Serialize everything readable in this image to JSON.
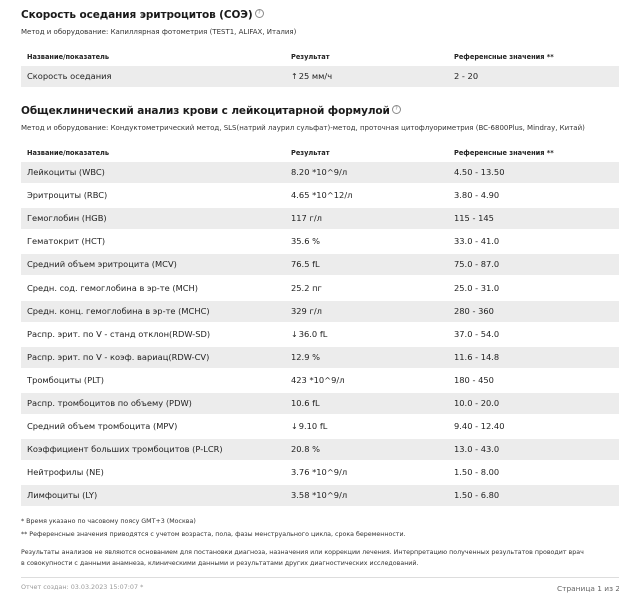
{
  "esr_section": {
    "title": "Скорость оседания эритроцитов (СОЭ)",
    "method": "Метод и оборудование: Капиллярная фотометрия (TEST1, ALIFAX, Италия)",
    "headers": [
      "Название/показатель",
      "Результат",
      "Референсные значения **"
    ],
    "rows": [
      {
        "name": "Скорость оседания",
        "arrow": "↑",
        "result": "25 мм/ч",
        "ref": "2 - 20"
      }
    ]
  },
  "cbc_section": {
    "title": "Общеклинический анализ крови с лейкоцитарной формулой",
    "method": "Метод и оборудование: Кондуктометрический метод, SLS(натрий лаурил сульфат)-метод, проточная цитофлуориметрия (BC-6800Plus, Mindray, Китай)",
    "headers": [
      "Название/показатель",
      "Результат",
      "Референсные значения **"
    ],
    "rows": [
      {
        "name": "Лейкоциты (WBC)",
        "arrow": "",
        "result": "8.20 *10^9/л",
        "ref": "4.50 - 13.50"
      },
      {
        "name": "Эритроциты (RBC)",
        "arrow": "",
        "result": "4.65 *10^12/л",
        "ref": "3.80 - 4.90"
      },
      {
        "name": "Гемоглобин (HGB)",
        "arrow": "",
        "result": "117 г/л",
        "ref": "115 - 145"
      },
      {
        "name": "Гематокрит (HCT)",
        "arrow": "",
        "result": "35.6 %",
        "ref": "33.0 - 41.0"
      },
      {
        "name": "Средний объем эритроцита (MCV)",
        "arrow": "",
        "result": "76.5 fL",
        "ref": "75.0 - 87.0"
      },
      {
        "name": "Средн. сод. гемоглобина в эр-те (MCH)",
        "arrow": "",
        "result": "25.2 пг",
        "ref": "25.0 - 31.0"
      },
      {
        "name": "Средн. конц. гемоглобина в эр-те (MCHC)",
        "arrow": "",
        "result": "329 г/л",
        "ref": "280 - 360"
      },
      {
        "name": "Распр. эрит. по V - станд отклон(RDW-SD)",
        "arrow": "↓",
        "result": "36.0 fL",
        "ref": "37.0 - 54.0"
      },
      {
        "name": "Распр. эрит. по V - коэф. вариац(RDW-CV)",
        "arrow": "",
        "result": "12.9 %",
        "ref": "11.6 - 14.8"
      },
      {
        "name": "Тромбоциты (PLT)",
        "arrow": "",
        "result": "423 *10^9/л",
        "ref": "180 - 450"
      },
      {
        "name": "Распр. тромбоцитов по объему (PDW)",
        "arrow": "",
        "result": "10.6 fL",
        "ref": "10.0 - 20.0"
      },
      {
        "name": "Средний объем тромбоцита (MPV)",
        "arrow": "↓",
        "result": "9.10 fL",
        "ref": "9.40 - 12.40"
      },
      {
        "name": "Коэффициент больших тромбоцитов (P-LCR)",
        "arrow": "",
        "result": "20.8 %",
        "ref": "13.0 - 43.0"
      },
      {
        "name": "Нейтрофилы (NE)",
        "arrow": "",
        "result": "3.76 *10^9/л",
        "ref": "1.50 - 8.00"
      },
      {
        "name": "Лимфоциты (LY)",
        "arrow": "",
        "result": "3.58 *10^9/л",
        "ref": "1.50 - 6.80"
      }
    ]
  },
  "notes": {
    "time_note": "* Время указано по часовому поясу GMT+3 (Москва)",
    "ref_note": "** Референсные значения приводятся с учетом возраста, пола, фазы менструального цикла, срока беременности.",
    "disclaimer_line1": "Результаты анализов не являются основанием для постановки диагноза, назначения или коррекции лечения. Интерпретацию полученных результатов проводит врач",
    "disclaimer_line2": "в совокупности с данными анамнеза, клиническими данными и результатами других диагностических исследований."
  },
  "footer": {
    "created": "Отчет создан: 03.03.2023 15:07:07 *",
    "page": "Страница 1 из 2"
  },
  "info_icon_glyph": "?"
}
